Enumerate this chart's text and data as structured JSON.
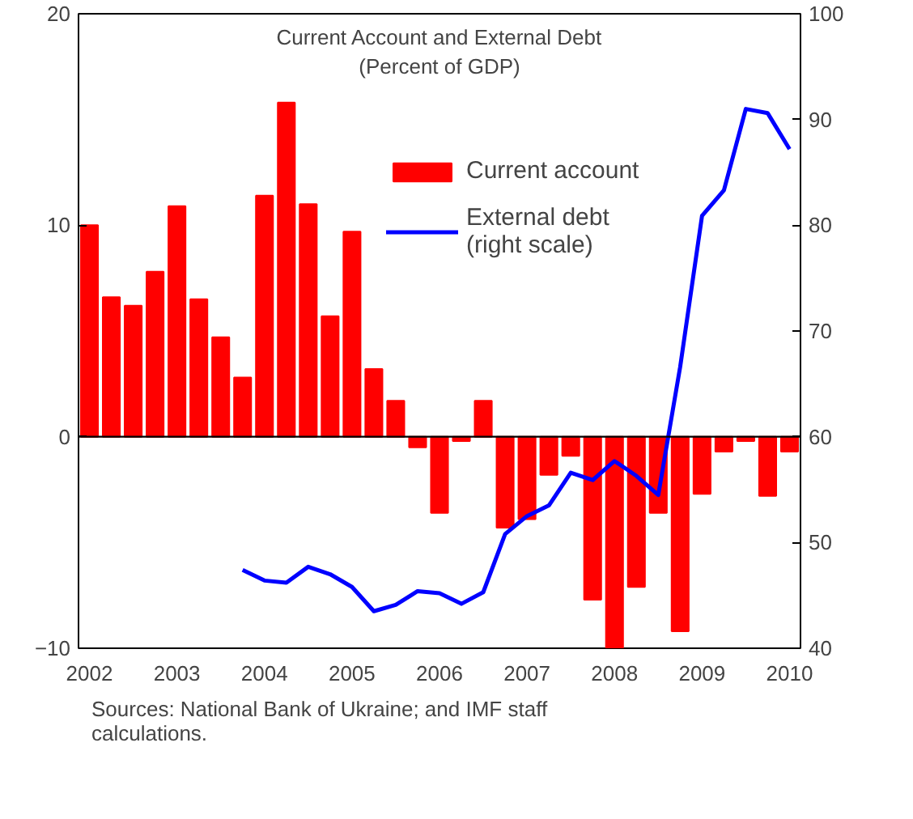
{
  "chart_data": {
    "type": "bar",
    "title": "Current Account and External Debt",
    "subtitle": "(Percent of GDP)",
    "categories": [
      "2002",
      null,
      null,
      null,
      "2003",
      null,
      null,
      null,
      "2004",
      null,
      null,
      null,
      "2005",
      null,
      null,
      null,
      "2006",
      null,
      null,
      null,
      "2007",
      null,
      null,
      null,
      "2008",
      null,
      null,
      null,
      "2009",
      null,
      null,
      null,
      "2010"
    ],
    "series": [
      {
        "name": "Current account",
        "color": "#ff0000",
        "values": [
          10.0,
          6.6,
          6.2,
          7.8,
          10.9,
          6.5,
          4.7,
          2.8,
          11.4,
          15.8,
          11.0,
          5.7,
          9.7,
          3.2,
          1.7,
          -0.5,
          -3.6,
          -0.2,
          1.7,
          -4.3,
          -3.9,
          -1.8,
          -0.9,
          -7.7,
          -10.0,
          -7.1,
          -3.6,
          -9.2,
          -2.7,
          -0.7,
          -0.2,
          -2.8,
          -0.7
        ]
      },
      {
        "name": "External debt (right scale)",
        "type": "line",
        "axis": "y2",
        "color": "#0000ff",
        "values": [
          null,
          null,
          null,
          null,
          null,
          null,
          null,
          47.4,
          46.4,
          46.2,
          47.7,
          47.0,
          45.8,
          43.5,
          44.1,
          45.4,
          45.2,
          44.2,
          45.3,
          50.8,
          52.5,
          53.5,
          56.6,
          55.9,
          57.7,
          56.3,
          54.5,
          66.6,
          80.9,
          83.3,
          91.0,
          90.6,
          87.2
        ]
      }
    ],
    "ylim": [
      -10,
      20
    ],
    "yticks": [
      -10,
      0,
      10,
      20
    ],
    "y2lim": [
      40,
      100
    ],
    "y2ticks": [
      40,
      50,
      60,
      70,
      80,
      90,
      100
    ],
    "ref_lines": [
      {
        "axis": "y",
        "value": 0,
        "color": "#000000"
      }
    ],
    "grid": false,
    "legend": "top right",
    "annotations": [
      "Sources: National Bank of Ukraine; and IMF staff calculations."
    ]
  }
}
